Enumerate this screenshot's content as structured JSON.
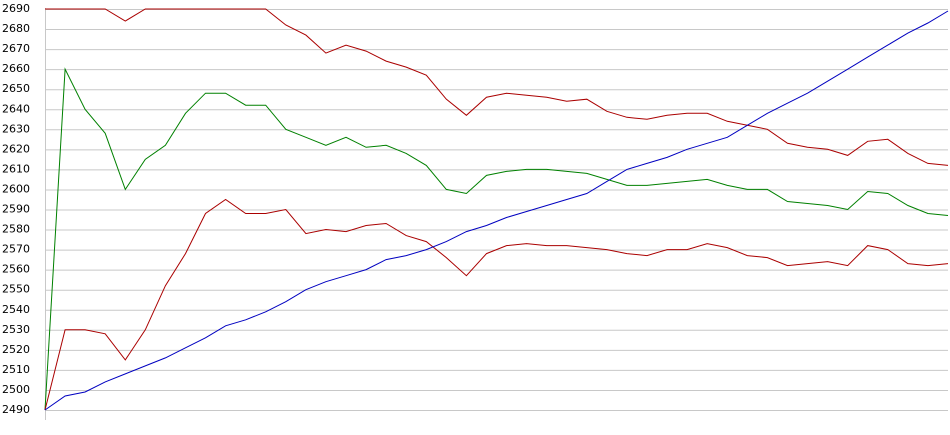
{
  "chart_data": {
    "type": "line",
    "ylim": [
      2490,
      2690
    ],
    "yticks": [
      2490,
      2500,
      2510,
      2520,
      2530,
      2540,
      2550,
      2560,
      2570,
      2580,
      2590,
      2600,
      2610,
      2620,
      2630,
      2640,
      2650,
      2660,
      2670,
      2680,
      2690
    ],
    "grid": true,
    "series": [
      {
        "color": "#aa0000",
        "values": [
          2690,
          2690,
          2690,
          2690,
          2684,
          2690,
          2690,
          2690,
          2690,
          2690,
          2690,
          2690,
          2682,
          2677,
          2668,
          2672,
          2669,
          2664,
          2661,
          2657,
          2645,
          2637,
          2646,
          2648,
          2647,
          2646,
          2644,
          2645,
          2639,
          2636,
          2635,
          2637,
          2638,
          2638,
          2634,
          2632,
          2630,
          2623,
          2621,
          2620,
          2617,
          2624,
          2625,
          2618,
          2613,
          2612
        ]
      },
      {
        "color": "#008000",
        "values": [
          2490,
          2660,
          2640,
          2628,
          2600,
          2615,
          2622,
          2638,
          2648,
          2648,
          2642,
          2642,
          2630,
          2626,
          2622,
          2626,
          2621,
          2622,
          2618,
          2612,
          2600,
          2598,
          2607,
          2609,
          2610,
          2610,
          2609,
          2608,
          2605,
          2602,
          2602,
          2603,
          2604,
          2605,
          2602,
          2600,
          2600,
          2594,
          2593,
          2592,
          2590,
          2599,
          2598,
          2592,
          2588,
          2587
        ]
      },
      {
        "color": "#aa0000",
        "values": [
          2490,
          2530,
          2530,
          2528,
          2515,
          2530,
          2552,
          2568,
          2588,
          2595,
          2588,
          2588,
          2590,
          2578,
          2580,
          2579,
          2582,
          2583,
          2577,
          2574,
          2566,
          2557,
          2568,
          2572,
          2573,
          2572,
          2572,
          2571,
          2570,
          2568,
          2567,
          2570,
          2570,
          2573,
          2571,
          2567,
          2566,
          2562,
          2563,
          2564,
          2562,
          2572,
          2570,
          2563,
          2562,
          2563
        ]
      },
      {
        "color": "#0000c0",
        "values": [
          2490,
          2497,
          2499,
          2504,
          2508,
          2512,
          2516,
          2521,
          2526,
          2532,
          2535,
          2539,
          2544,
          2550,
          2554,
          2557,
          2560,
          2565,
          2567,
          2570,
          2574,
          2579,
          2582,
          2586,
          2589,
          2592,
          2595,
          2598,
          2604,
          2610,
          2613,
          2616,
          2620,
          2623,
          2626,
          2632,
          2638,
          2643,
          2648,
          2654,
          2660,
          2666,
          2672,
          2678,
          2683,
          2689
        ]
      }
    ]
  }
}
